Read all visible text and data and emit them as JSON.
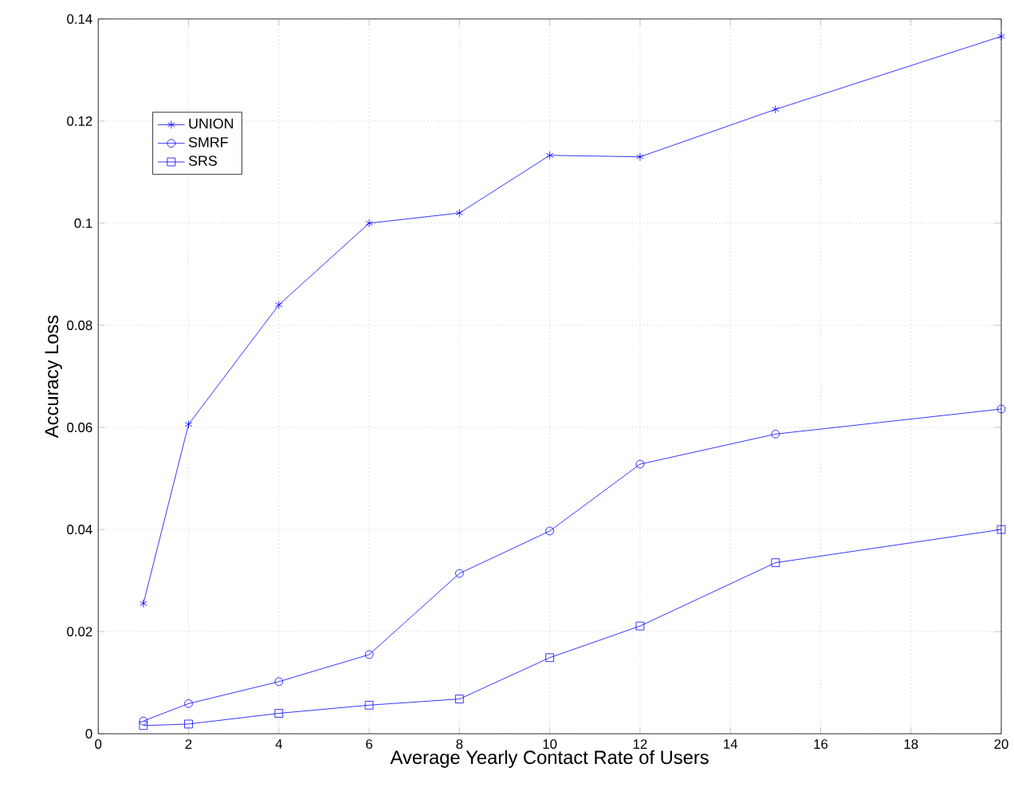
{
  "chart_data": {
    "type": "line",
    "xlabel": "Average Yearly Contact Rate of Users",
    "ylabel": "Accuracy Loss",
    "x": [
      1,
      2,
      4,
      6,
      8,
      10,
      12,
      15,
      20
    ],
    "series": [
      {
        "name": "UNION",
        "color": "#0000ff",
        "marker": "cross",
        "values": [
          0.0255,
          0.0606,
          0.084,
          0.1,
          0.102,
          0.1133,
          0.113,
          0.1223,
          0.1366
        ]
      },
      {
        "name": "SMRF",
        "color": "#0000ff",
        "marker": "circle",
        "values": [
          0.0025,
          0.0059,
          0.0102,
          0.0155,
          0.0314,
          0.0397,
          0.0528,
          0.0587,
          0.0636
        ]
      },
      {
        "name": "SRS",
        "color": "#0000ff",
        "marker": "square",
        "values": [
          0.0016,
          0.0019,
          0.004,
          0.0056,
          0.0068,
          0.0149,
          0.0211,
          0.0335,
          0.04
        ]
      }
    ],
    "xlim": [
      0,
      20
    ],
    "xticks": [
      0,
      2,
      4,
      6,
      8,
      10,
      12,
      14,
      16,
      18,
      20
    ],
    "ylim": [
      0,
      0.14
    ],
    "yticks": [
      0,
      0.02,
      0.04,
      0.06,
      0.08,
      0.1,
      0.12,
      0.14
    ],
    "grid": true,
    "legend": "top left",
    "line_style": "solid"
  }
}
